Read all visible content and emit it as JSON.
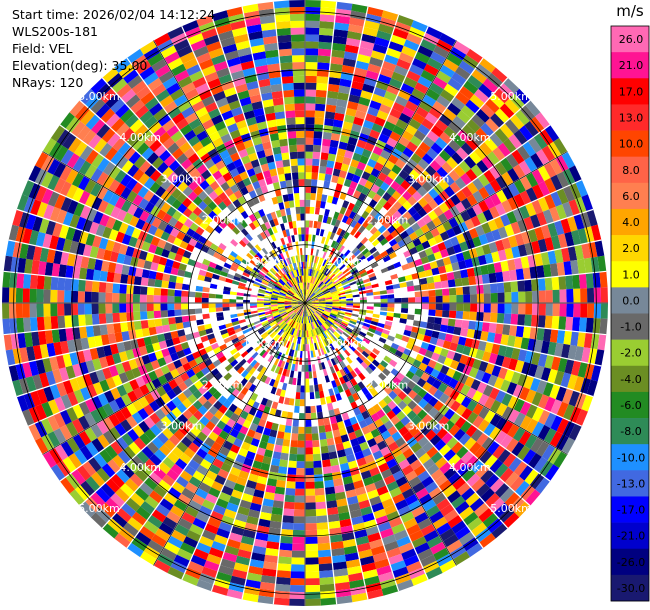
{
  "info": {
    "start_time": "Start time: 2026/02/04 14:12:24",
    "instrument": "WLS200s-181",
    "field": "Field: VEL",
    "elevation": "Elevation(deg): 35.00",
    "nrays": "NRays: 120"
  },
  "chart_data": {
    "type": "polar-heatmap",
    "title": "",
    "field": "VEL",
    "units": "m/s",
    "n_rays": 120,
    "range_rings_km": [
      1.0,
      2.0,
      3.0,
      4.0,
      5.0
    ],
    "range_ring_labels": [
      "1.00km",
      "2.00km",
      "3.00km",
      "4.00km",
      "5.00km"
    ],
    "max_range_km": 5.2,
    "grid": true,
    "colorbar": {
      "unit_label": "m/s",
      "ticks": [
        "26.0",
        "21.0",
        "17.0",
        "13.0",
        "10.0",
        "8.0",
        "6.0",
        "4.0",
        "2.0",
        "1.0",
        "0.0",
        "-1.0",
        "-2.0",
        "-4.0",
        "-6.0",
        "-8.0",
        "-10.0",
        "-13.0",
        "-17.0",
        "-21.0",
        "-26.0",
        "-30.0"
      ],
      "colors": [
        "#ff69b4",
        "#ff1493",
        "#ff0000",
        "#ff2a2a",
        "#ff4500",
        "#ff6347",
        "#ff7f50",
        "#ffa500",
        "#ffd700",
        "#ffff00",
        "#778899",
        "#696969",
        "#9acd32",
        "#6b8e23",
        "#228b22",
        "#2e8b57",
        "#1e90ff",
        "#4169e1",
        "#0000ff",
        "#0000cd",
        "#000080",
        "#191970"
      ]
    }
  }
}
